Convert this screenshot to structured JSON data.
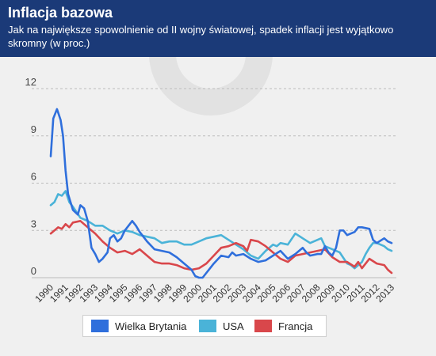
{
  "header": {
    "title": "Inflacja bazowa",
    "subtitle": "Jak na największe spowolnienie od II wojny światowej, spadek inflacji jest wyjątkowo skromny (w proc.)"
  },
  "colors": {
    "header_bg": "#1b3a78",
    "uk": "#2f6fdc",
    "usa": "#4ab3d8",
    "france": "#d9474b",
    "grid": "#bcbcbc"
  },
  "chart_data": {
    "type": "line",
    "ylim": [
      0,
      12
    ],
    "yticks": [
      0,
      3,
      6,
      9,
      12
    ],
    "xlim": [
      1990,
      2013
    ],
    "xticks": [
      1990,
      1991,
      1992,
      1993,
      1994,
      1995,
      1996,
      1997,
      1998,
      1999,
      2000,
      2001,
      2002,
      2003,
      2004,
      2005,
      2006,
      2007,
      2008,
      2009,
      2010,
      2011,
      2012,
      2013
    ],
    "grid": "horizontal dashed",
    "legend_position": "bottom",
    "series": [
      {
        "name": "Wielka Brytania",
        "color": "#2f6fdc",
        "points": [
          [
            1990.0,
            7.7
          ],
          [
            1990.17,
            10.1
          ],
          [
            1990.42,
            10.7
          ],
          [
            1990.67,
            10.0
          ],
          [
            1990.83,
            9.0
          ],
          [
            1991.0,
            6.8
          ],
          [
            1991.17,
            5.3
          ],
          [
            1991.5,
            4.3
          ],
          [
            1991.83,
            4.0
          ],
          [
            1992.0,
            4.6
          ],
          [
            1992.25,
            4.4
          ],
          [
            1992.5,
            3.6
          ],
          [
            1992.75,
            1.9
          ],
          [
            1993.0,
            1.5
          ],
          [
            1993.25,
            1.0
          ],
          [
            1993.5,
            1.2
          ],
          [
            1993.83,
            1.6
          ],
          [
            1994.0,
            2.5
          ],
          [
            1994.25,
            2.7
          ],
          [
            1994.5,
            2.3
          ],
          [
            1994.75,
            2.5
          ],
          [
            1995.0,
            3.0
          ],
          [
            1995.5,
            3.6
          ],
          [
            1995.75,
            3.3
          ],
          [
            1996.0,
            2.9
          ],
          [
            1996.5,
            2.3
          ],
          [
            1997.0,
            1.8
          ],
          [
            1997.5,
            1.7
          ],
          [
            1998.0,
            1.6
          ],
          [
            1998.5,
            1.3
          ],
          [
            1999.0,
            0.9
          ],
          [
            1999.5,
            0.5
          ],
          [
            1999.75,
            0.1
          ],
          [
            2000.0,
            0.0
          ],
          [
            2000.25,
            0.0
          ],
          [
            2000.5,
            0.3
          ],
          [
            2000.75,
            0.6
          ],
          [
            2001.0,
            0.9
          ],
          [
            2001.5,
            1.4
          ],
          [
            2002.0,
            1.3
          ],
          [
            2002.25,
            1.6
          ],
          [
            2002.5,
            1.4
          ],
          [
            2003.0,
            1.5
          ],
          [
            2003.5,
            1.2
          ],
          [
            2004.0,
            1.0
          ],
          [
            2004.5,
            1.1
          ],
          [
            2005.0,
            1.4
          ],
          [
            2005.5,
            1.7
          ],
          [
            2006.0,
            1.2
          ],
          [
            2006.5,
            1.5
          ],
          [
            2007.0,
            1.9
          ],
          [
            2007.25,
            1.6
          ],
          [
            2007.5,
            1.4
          ],
          [
            2008.0,
            1.5
          ],
          [
            2008.25,
            1.5
          ],
          [
            2008.5,
            2.0
          ],
          [
            2008.75,
            1.6
          ],
          [
            2009.0,
            1.4
          ],
          [
            2009.25,
            1.9
          ],
          [
            2009.5,
            3.0
          ],
          [
            2009.75,
            3.0
          ],
          [
            2010.0,
            2.7
          ],
          [
            2010.5,
            2.9
          ],
          [
            2010.75,
            3.2
          ],
          [
            2011.0,
            3.2
          ],
          [
            2011.5,
            3.1
          ],
          [
            2011.75,
            2.4
          ],
          [
            2012.0,
            2.2
          ],
          [
            2012.5,
            2.5
          ],
          [
            2012.75,
            2.3
          ],
          [
            2013.0,
            2.2
          ]
        ]
      },
      {
        "name": "USA",
        "color": "#4ab3d8",
        "points": [
          [
            1990.0,
            4.6
          ],
          [
            1990.25,
            4.8
          ],
          [
            1990.5,
            5.3
          ],
          [
            1990.75,
            5.2
          ],
          [
            1991.0,
            5.5
          ],
          [
            1991.25,
            4.8
          ],
          [
            1991.5,
            4.5
          ],
          [
            1992.0,
            3.8
          ],
          [
            1992.5,
            3.6
          ],
          [
            1993.0,
            3.3
          ],
          [
            1993.5,
            3.3
          ],
          [
            1994.0,
            3.0
          ],
          [
            1994.5,
            2.8
          ],
          [
            1995.0,
            3.0
          ],
          [
            1995.5,
            2.9
          ],
          [
            1996.0,
            2.7
          ],
          [
            1996.5,
            2.6
          ],
          [
            1997.0,
            2.5
          ],
          [
            1997.5,
            2.2
          ],
          [
            1998.0,
            2.3
          ],
          [
            1998.5,
            2.3
          ],
          [
            1999.0,
            2.1
          ],
          [
            1999.5,
            2.1
          ],
          [
            2000.0,
            2.3
          ],
          [
            2000.5,
            2.5
          ],
          [
            2001.0,
            2.6
          ],
          [
            2001.5,
            2.7
          ],
          [
            2002.0,
            2.4
          ],
          [
            2002.5,
            2.1
          ],
          [
            2003.0,
            1.8
          ],
          [
            2003.5,
            1.4
          ],
          [
            2004.0,
            1.2
          ],
          [
            2004.5,
            1.7
          ],
          [
            2005.0,
            2.1
          ],
          [
            2005.25,
            2.0
          ],
          [
            2005.5,
            2.2
          ],
          [
            2006.0,
            2.1
          ],
          [
            2006.5,
            2.8
          ],
          [
            2007.0,
            2.5
          ],
          [
            2007.5,
            2.2
          ],
          [
            2008.0,
            2.4
          ],
          [
            2008.25,
            2.5
          ],
          [
            2008.5,
            2.0
          ],
          [
            2009.0,
            1.8
          ],
          [
            2009.5,
            1.6
          ],
          [
            2010.0,
            0.9
          ],
          [
            2010.25,
            0.8
          ],
          [
            2010.5,
            0.6
          ],
          [
            2011.0,
            1.0
          ],
          [
            2011.25,
            1.5
          ],
          [
            2011.5,
            1.9
          ],
          [
            2011.75,
            2.2
          ],
          [
            2012.0,
            2.2
          ],
          [
            2012.5,
            2.0
          ],
          [
            2012.75,
            1.8
          ],
          [
            2013.0,
            1.7
          ]
        ]
      },
      {
        "name": "Francja",
        "color": "#d9474b",
        "points": [
          [
            1990.0,
            2.8
          ],
          [
            1990.25,
            3.0
          ],
          [
            1990.5,
            3.2
          ],
          [
            1990.75,
            3.1
          ],
          [
            1991.0,
            3.4
          ],
          [
            1991.25,
            3.2
          ],
          [
            1991.5,
            3.5
          ],
          [
            1992.0,
            3.6
          ],
          [
            1992.5,
            3.2
          ],
          [
            1993.0,
            2.8
          ],
          [
            1993.5,
            2.3
          ],
          [
            1994.0,
            1.9
          ],
          [
            1994.5,
            1.6
          ],
          [
            1995.0,
            1.7
          ],
          [
            1995.5,
            1.5
          ],
          [
            1996.0,
            1.8
          ],
          [
            1996.5,
            1.4
          ],
          [
            1997.0,
            1.0
          ],
          [
            1997.5,
            0.9
          ],
          [
            1998.0,
            0.9
          ],
          [
            1998.5,
            0.8
          ],
          [
            1999.0,
            0.6
          ],
          [
            1999.5,
            0.5
          ],
          [
            2000.0,
            0.6
          ],
          [
            2000.5,
            0.9
          ],
          [
            2001.0,
            1.4
          ],
          [
            2001.5,
            1.9
          ],
          [
            2002.0,
            2.0
          ],
          [
            2002.5,
            2.2
          ],
          [
            2003.0,
            2.0
          ],
          [
            2003.25,
            1.7
          ],
          [
            2003.5,
            2.4
          ],
          [
            2004.0,
            2.3
          ],
          [
            2004.5,
            2.0
          ],
          [
            2005.0,
            1.6
          ],
          [
            2005.5,
            1.2
          ],
          [
            2006.0,
            1.0
          ],
          [
            2006.5,
            1.4
          ],
          [
            2007.0,
            1.5
          ],
          [
            2007.5,
            1.6
          ],
          [
            2008.0,
            1.7
          ],
          [
            2008.5,
            1.8
          ],
          [
            2009.0,
            1.3
          ],
          [
            2009.5,
            1.0
          ],
          [
            2010.0,
            1.0
          ],
          [
            2010.5,
            0.7
          ],
          [
            2010.75,
            1.0
          ],
          [
            2011.0,
            0.6
          ],
          [
            2011.5,
            1.2
          ],
          [
            2012.0,
            0.9
          ],
          [
            2012.5,
            0.8
          ],
          [
            2012.75,
            0.5
          ],
          [
            2013.0,
            0.3
          ]
        ]
      }
    ]
  },
  "legend": {
    "items": [
      {
        "label": "Wielka Brytania",
        "color": "#2f6fdc"
      },
      {
        "label": "USA",
        "color": "#4ab3d8"
      },
      {
        "label": "Francja",
        "color": "#d9474b"
      }
    ]
  }
}
